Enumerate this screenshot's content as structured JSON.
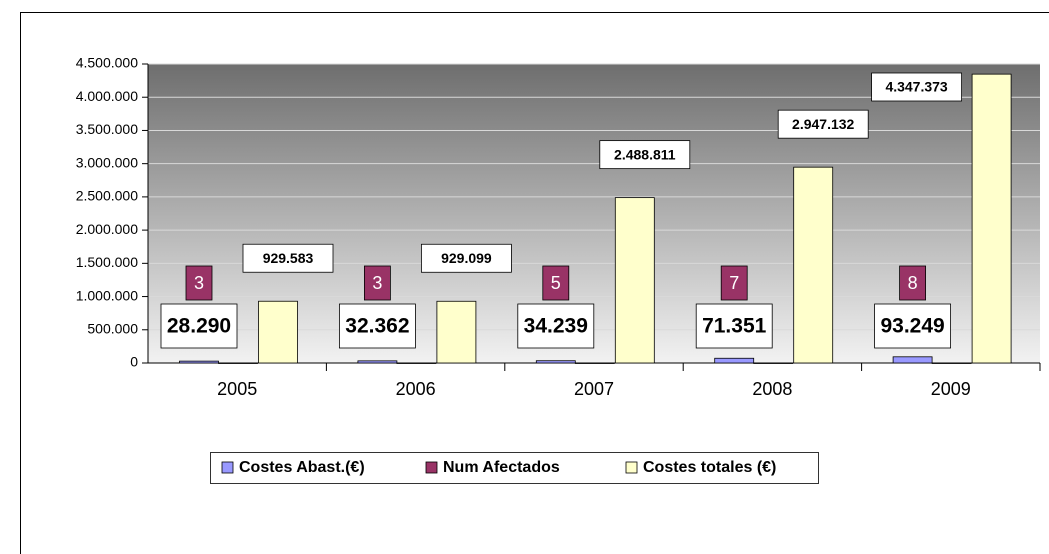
{
  "chart_data": {
    "type": "bar",
    "categories": [
      "2005",
      "2006",
      "2007",
      "2008",
      "2009"
    ],
    "series": [
      {
        "name": "Costes Abast.(€)",
        "color": "#9999ff",
        "values": [
          28290,
          32362,
          34239,
          71351,
          93249
        ],
        "value_labels": [
          "28.290",
          "32.362",
          "34.239",
          "71.351",
          "93.249"
        ]
      },
      {
        "name": "Num Afectados",
        "color": "#993366",
        "values": [
          3,
          3,
          5,
          7,
          8
        ]
      },
      {
        "name": "Costes totales (€)",
        "color": "#ffffcc",
        "values": [
          929583,
          929099,
          2488811,
          2947132,
          4347373
        ],
        "value_labels": [
          "929.583",
          "929.099",
          "2.488.811",
          "2.947.132",
          "4.347.373"
        ]
      }
    ],
    "ylim": [
      0,
      4500000
    ],
    "yticks": [
      0,
      {
        "value": 500000,
        "label": "500.000"
      },
      {
        "value": 1000000,
        "label": "1.000.000"
      },
      {
        "value": 1500000,
        "label": "1.500.000"
      },
      {
        "value": 2000000,
        "label": "2.000.000"
      },
      {
        "value": 2500000,
        "label": "2.500.000"
      },
      {
        "value": 3000000,
        "label": "3.000.000"
      },
      {
        "value": 3500000,
        "label": "3.500.000"
      },
      {
        "value": 4000000,
        "label": "4.000.000"
      },
      {
        "value": 4500000,
        "label": "4.500.000"
      }
    ],
    "grid": true,
    "legend": "bottom"
  }
}
